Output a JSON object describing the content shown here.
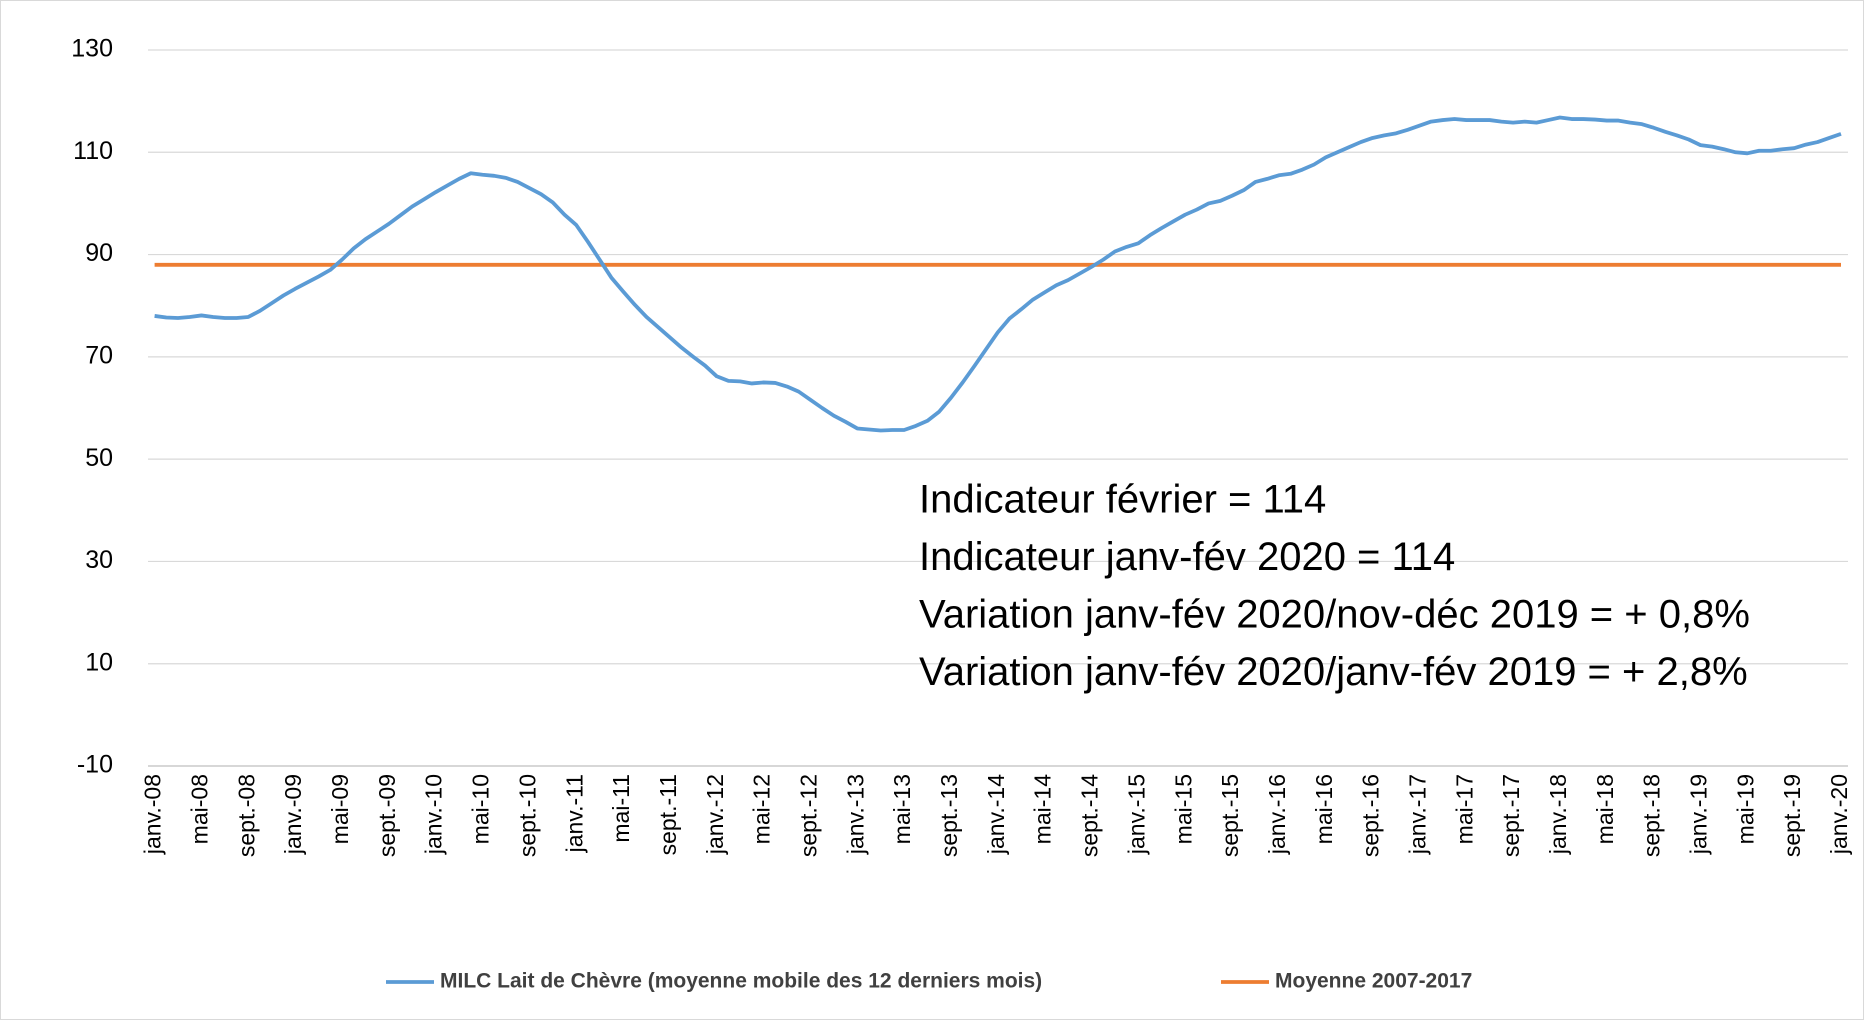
{
  "chart_data": {
    "type": "line",
    "categories": [
      "janv.-08",
      null,
      null,
      null,
      "mai-08",
      null,
      null,
      null,
      "sept.-08",
      null,
      null,
      null,
      "janv.-09",
      null,
      null,
      null,
      "mai-09",
      null,
      null,
      null,
      "sept.-09",
      null,
      null,
      null,
      "janv.-10",
      null,
      null,
      null,
      "mai-10",
      null,
      null,
      null,
      "sept.-10",
      null,
      null,
      null,
      "janv.-11",
      null,
      null,
      null,
      "mai-11",
      null,
      null,
      null,
      "sept.-11",
      null,
      null,
      null,
      "janv.-12",
      null,
      null,
      null,
      "mai-12",
      null,
      null,
      null,
      "sept.-12",
      null,
      null,
      null,
      "janv.-13",
      null,
      null,
      null,
      "mai-13",
      null,
      null,
      null,
      "sept.-13",
      null,
      null,
      null,
      "janv.-14",
      null,
      null,
      null,
      "mai-14",
      null,
      null,
      null,
      "sept.-14",
      null,
      null,
      null,
      "janv.-15",
      null,
      null,
      null,
      "mai-15",
      null,
      null,
      null,
      "sept.-15",
      null,
      null,
      null,
      "janv.-16",
      null,
      null,
      null,
      "mai-16",
      null,
      null,
      null,
      "sept.-16",
      null,
      null,
      null,
      "janv.-17",
      null,
      null,
      null,
      "mai-17",
      null,
      null,
      null,
      "sept.-17",
      null,
      null,
      null,
      "janv.-18",
      null,
      null,
      null,
      "mai-18",
      null,
      null,
      null,
      "sept.-18",
      null,
      null,
      null,
      "janv.-19",
      null,
      null,
      null,
      "mai-19",
      null,
      null,
      null,
      "sept.-19",
      null,
      null,
      null,
      "janv.-20"
    ],
    "series": [
      {
        "name": "MILC Lait de Chèvre (moyenne mobile des 12 derniers mois)",
        "color": "#5b9bd5",
        "values": [
          78,
          77.7,
          77.6,
          77.8,
          78.1,
          77.8,
          77.6,
          77.6,
          77.8,
          79,
          80.5,
          82,
          83.3,
          84.5,
          85.7,
          87,
          89,
          91.2,
          93,
          94.5,
          96,
          97.7,
          99.4,
          100.8,
          102.2,
          103.5,
          104.8,
          105.9,
          105.6,
          105.4,
          105,
          104.2,
          103,
          101.8,
          100.2,
          97.8,
          95.8,
          92.5,
          89,
          85.5,
          82.8,
          80.2,
          77.8,
          75.8,
          73.8,
          71.8,
          70,
          68.3,
          66.2,
          65.3,
          65.2,
          64.8,
          65,
          64.9,
          64.2,
          63.2,
          61.6,
          60,
          58.5,
          57.3,
          56,
          55.8,
          55.6,
          55.7,
          55.7,
          56.5,
          57.5,
          59.3,
          62,
          65,
          68.2,
          71.5,
          74.8,
          77.5,
          79.3,
          81.2,
          82.6,
          84,
          85,
          86.3,
          87.6,
          89,
          90.6,
          91.5,
          92.2,
          93.8,
          95.2,
          96.5,
          97.8,
          98.8,
          100,
          100.5,
          101.5,
          102.6,
          104.2,
          104.8,
          105.5,
          105.8,
          106.6,
          107.6,
          109,
          110,
          111,
          112,
          112.8,
          113.3,
          113.7,
          114.4,
          115.2,
          116,
          116.3,
          116.5,
          116.3,
          116.3,
          116.3,
          116,
          115.8,
          116,
          115.8,
          116.3,
          116.8,
          116.5,
          116.5,
          116.4,
          116.2,
          116.2,
          115.8,
          115.5,
          114.8,
          114,
          113.3,
          112.5,
          111.4,
          111.1,
          110.6,
          110,
          109.8,
          110.3,
          110.3,
          110.6,
          110.8,
          111.5,
          112,
          112.8,
          113.6
        ]
      },
      {
        "name": "Moyenne 2007-2017",
        "color": "#ed7d31",
        "values": [
          88,
          88,
          88,
          88,
          88,
          88,
          88,
          88,
          88,
          88,
          88,
          88,
          88,
          88,
          88,
          88,
          88,
          88,
          88,
          88,
          88,
          88,
          88,
          88,
          88,
          88,
          88,
          88,
          88,
          88,
          88,
          88,
          88,
          88,
          88,
          88,
          88,
          88,
          88,
          88,
          88,
          88,
          88,
          88,
          88,
          88,
          88,
          88,
          88,
          88,
          88,
          88,
          88,
          88,
          88,
          88,
          88,
          88,
          88,
          88,
          88,
          88,
          88,
          88,
          88,
          88,
          88,
          88,
          88,
          88,
          88,
          88,
          88,
          88,
          88,
          88,
          88,
          88,
          88,
          88,
          88,
          88,
          88,
          88,
          88,
          88,
          88,
          88,
          88,
          88,
          88,
          88,
          88,
          88,
          88,
          88,
          88,
          88,
          88,
          88,
          88,
          88,
          88,
          88,
          88,
          88,
          88,
          88,
          88,
          88,
          88,
          88,
          88,
          88,
          88,
          88,
          88,
          88,
          88,
          88,
          88,
          88,
          88,
          88,
          88,
          88,
          88,
          88,
          88,
          88,
          88,
          88,
          88,
          88,
          88,
          88,
          88,
          88,
          88,
          88,
          88,
          88,
          88,
          88,
          88
        ]
      }
    ],
    "ylim": [
      -10,
      130
    ],
    "yticks": [
      -10,
      10,
      30,
      50,
      70,
      90,
      110,
      130
    ],
    "grid": true,
    "legend": "bottom",
    "annotations": [
      "Indicateur février = 114",
      "Indicateur janv-fév 2020 = 114",
      "Variation janv-fév 2020/nov-déc 2019 = + 0,8%",
      "Variation janv-fév 2020/janv-fév 2019 = + 2,8%"
    ]
  }
}
